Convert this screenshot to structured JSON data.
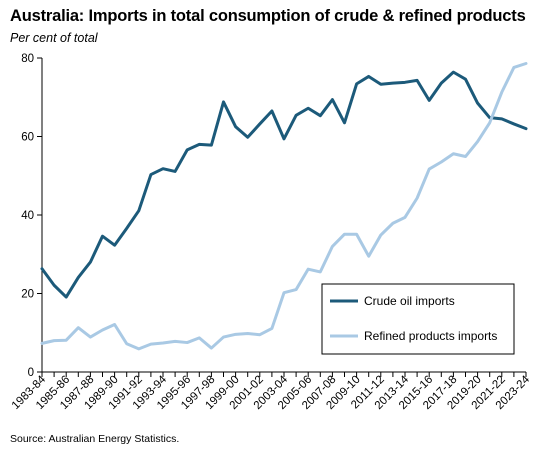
{
  "title": "Australia: Imports in total consumption of crude & refined products",
  "subtitle": "Per cent of total",
  "source": "Source: Australian Energy Statistics.",
  "colors": {
    "crude": "#1c5a7a",
    "refined": "#a9c9e4",
    "axis": "#000000",
    "legend_border": "#000000"
  },
  "chart_data": {
    "type": "line",
    "title": "Australia: Imports in total consumption of crude & refined products",
    "ylabel": "Per cent of total",
    "xlabel": "",
    "ylim": [
      0,
      80
    ],
    "yticks": [
      0,
      20,
      40,
      60,
      80
    ],
    "grid": false,
    "legend_placement": "bottom-right",
    "x": [
      "1983-84",
      "1984-85",
      "1985-86",
      "1986-87",
      "1987-88",
      "1988-89",
      "1989-90",
      "1990-91",
      "1991-92",
      "1992-93",
      "1993-94",
      "1994-95",
      "1995-96",
      "1996-97",
      "1997-98",
      "1998-99",
      "1999-00",
      "2000-01",
      "2001-02",
      "2002-03",
      "2003-04",
      "2004-05",
      "2005-06",
      "2006-07",
      "2007-08",
      "2008-09",
      "2009-10",
      "2010-11",
      "2011-12",
      "2012-13",
      "2013-14",
      "2014-15",
      "2015-16",
      "2016-17",
      "2017-18",
      "2018-19",
      "2019-20",
      "2020-21",
      "2021-22",
      "2022-23",
      "2023-24"
    ],
    "x_tick_labels": [
      "1983-84",
      "1985-86",
      "1987-88",
      "1989-90",
      "1991-92",
      "1993-94",
      "1995-96",
      "1997-98",
      "1999-00",
      "2001-02",
      "2003-04",
      "2005-06",
      "2007-08",
      "2009-10",
      "2011-12",
      "2013-14",
      "2015-16",
      "2017-18",
      "2019-20",
      "2021-22",
      "2023-24"
    ],
    "series": [
      {
        "name": "Crude oil imports",
        "color": "#1c5a7a",
        "values": [
          26.3,
          22.1,
          19.1,
          24.1,
          28.0,
          34.6,
          32.3,
          36.6,
          41.1,
          50.3,
          51.8,
          51.1,
          56.6,
          58.0,
          57.8,
          68.8,
          62.5,
          59.8,
          63.2,
          66.5,
          59.4,
          65.4,
          67.2,
          65.3,
          69.4,
          63.5,
          73.4,
          75.3,
          73.3,
          73.6,
          73.8,
          74.3,
          69.2,
          73.6,
          76.4,
          74.6,
          68.5,
          64.8,
          64.5,
          63.2,
          62.0
        ]
      },
      {
        "name": "Refined products imports",
        "color": "#a9c9e4",
        "values": [
          7.3,
          8.0,
          8.1,
          11.3,
          8.9,
          10.7,
          12.1,
          7.2,
          5.9,
          7.1,
          7.4,
          7.8,
          7.5,
          8.7,
          6.1,
          8.9,
          9.6,
          9.8,
          9.5,
          11.1,
          20.2,
          21.0,
          26.2,
          25.5,
          32.0,
          35.1,
          35.1,
          29.5,
          34.9,
          37.9,
          39.4,
          44.3,
          51.7,
          53.5,
          55.6,
          54.9,
          58.7,
          63.5,
          71.3,
          77.6,
          78.6
        ]
      }
    ]
  },
  "legend": {
    "items": [
      {
        "label": "Crude oil imports"
      },
      {
        "label": "Refined products imports"
      }
    ]
  }
}
